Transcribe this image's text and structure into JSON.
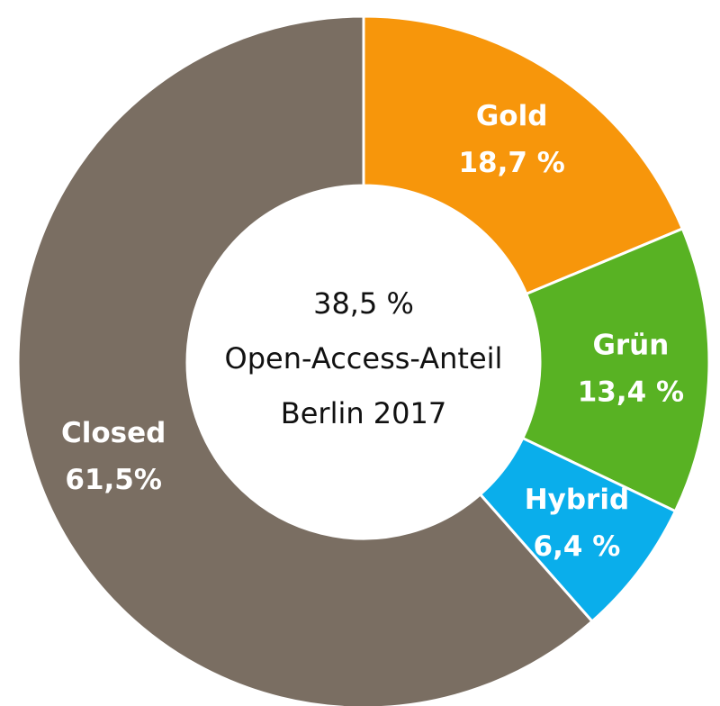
{
  "chart_data": {
    "type": "pie",
    "style": "donut",
    "center_text": [
      "38,5 %",
      "Open-Access-Anteil",
      "Berlin 2017"
    ],
    "series": [
      {
        "name": "Gold",
        "value": 18.7,
        "value_label": "18,7 %",
        "color": "#F7960B"
      },
      {
        "name": "Grün",
        "value": 13.4,
        "value_label": "13,4 %",
        "color": "#58B223"
      },
      {
        "name": "Hybrid",
        "value": 6.4,
        "value_label": "6,4 %",
        "color": "#0AAEEB"
      },
      {
        "name": "Closed",
        "value": 61.5,
        "value_label": "61,5%",
        "color": "#7A6E62"
      }
    ],
    "start_angle_deg": 0,
    "direction": "clockwise"
  }
}
